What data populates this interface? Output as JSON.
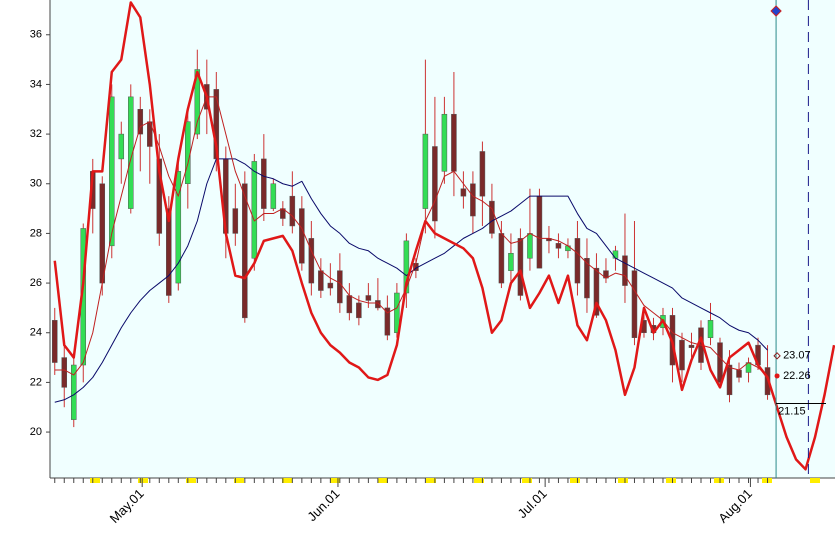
{
  "chart_data": {
    "type": "candlestick",
    "x": [
      0,
      1,
      2,
      3,
      4,
      5,
      6,
      7,
      8,
      9,
      10,
      11,
      12,
      13,
      14,
      15,
      16,
      17,
      18,
      19,
      20,
      21,
      22,
      23,
      24,
      25,
      26,
      27,
      28,
      29,
      30,
      31,
      32,
      33,
      34,
      35,
      36,
      37,
      38,
      39,
      40,
      41,
      42,
      43,
      44,
      45,
      46,
      47,
      48,
      49,
      50,
      51,
      52,
      53,
      54,
      55,
      56,
      57,
      58,
      59,
      60,
      61,
      62,
      63,
      64,
      65,
      66,
      67,
      68,
      69,
      70,
      71,
      72,
      73,
      74,
      75
    ],
    "open": [
      24.5,
      23,
      20.5,
      22.7,
      30.5,
      30,
      27.5,
      31,
      29,
      33,
      32.5,
      31,
      29,
      26,
      30,
      32,
      34,
      33.8,
      31,
      29,
      30,
      27,
      31,
      29,
      29,
      29.5,
      29,
      27.8,
      26.5,
      26,
      26.5,
      25.5,
      25.2,
      25.5,
      25.3,
      25,
      24,
      25.6,
      26.8,
      29,
      31.5,
      30.5,
      32.8,
      29.8,
      30,
      31.3,
      29.3,
      28,
      26.5,
      27.8,
      27,
      29.5,
      27.8,
      27.6,
      27.3,
      27.8,
      27,
      26.6,
      26.5,
      27,
      27.1,
      26.5,
      24.5,
      24.3,
      24.2,
      24.7,
      23.7,
      23.5,
      24.2,
      23.8,
      23.6,
      22.7,
      22.5,
      22.4,
      23.5,
      22.6
    ],
    "high": [
      25,
      23.5,
      23,
      28.4,
      31,
      30.3,
      34,
      32.5,
      34,
      33.5,
      33,
      32,
      29.5,
      31,
      33,
      35.4,
      35,
      34.5,
      31.5,
      30,
      30.5,
      31.2,
      32,
      30.2,
      29.3,
      30.5,
      29.5,
      28.5,
      27,
      26.8,
      27.2,
      26,
      25.5,
      26,
      26.2,
      25.5,
      26,
      28,
      27,
      35,
      33.5,
      33.5,
      34.5,
      30.5,
      30.5,
      31.7,
      30,
      28.5,
      28,
      28.2,
      29.8,
      29.8,
      28.3,
      28,
      27.8,
      28.5,
      27.8,
      27.2,
      27,
      27.5,
      28.8,
      28.5,
      25,
      24.6,
      25,
      25,
      24,
      24,
      24.5,
      25.2,
      23.8,
      23.3,
      22.8,
      23,
      23.8,
      23.5
    ],
    "low": [
      22.3,
      21,
      20.2,
      22,
      28,
      25.5,
      27,
      30,
      28.8,
      30.5,
      30,
      27.5,
      25.2,
      25.7,
      29,
      31.8,
      32,
      30.5,
      27,
      27.5,
      24.4,
      26.5,
      28.5,
      28.9,
      28.3,
      28,
      26.5,
      25.5,
      25.4,
      25.5,
      24.8,
      24.5,
      24.3,
      25,
      24.9,
      23.7,
      23.8,
      25,
      26.2,
      28,
      27.8,
      30,
      29.5,
      29,
      28,
      28.3,
      27.8,
      25.8,
      26,
      25.3,
      26.5,
      26.6,
      27.2,
      27,
      27,
      25.5,
      24.8,
      24.6,
      26,
      26.5,
      25.2,
      23.5,
      23.8,
      23.7,
      23.9,
      22,
      22,
      23,
      22.5,
      23.5,
      21.8,
      21.2,
      22,
      22,
      22.5,
      21.3
    ],
    "close": [
      22.8,
      21.8,
      22.7,
      28.2,
      29,
      26,
      33.5,
      32,
      33.5,
      32,
      31.5,
      28,
      25.5,
      30.5,
      32.5,
      34.6,
      33,
      31,
      28,
      28,
      24.6,
      30.9,
      29,
      30,
      28.6,
      28.3,
      26.8,
      26,
      25.7,
      25.8,
      25.2,
      24.8,
      24.6,
      25.3,
      25,
      23.9,
      25.6,
      27.7,
      26.5,
      32,
      28.5,
      32.8,
      30.5,
      29.5,
      28.7,
      29.5,
      28,
      26,
      27.2,
      25.5,
      28,
      26.6,
      27.7,
      27.4,
      27.5,
      26,
      25.4,
      24.7,
      26.2,
      27.3,
      25.9,
      23.8,
      24,
      24,
      24.7,
      22.7,
      22.5,
      23.4,
      22.8,
      24.5,
      22,
      21.5,
      22.2,
      22.8,
      22.7,
      21.5
    ],
    "up_color": "#33dd55",
    "down_color": "#7a2a2a",
    "wick_color": "#cc3333",
    "lines": [
      {
        "color": "#0a0a6a",
        "width": 1,
        "values": [
          21.2,
          21.3,
          21.5,
          21.8,
          22.2,
          22.8,
          23.5,
          24.2,
          24.8,
          25.3,
          25.7,
          26,
          26.3,
          26.8,
          27.5,
          28.5,
          30,
          31,
          31,
          31,
          30.8,
          30.5,
          30.3,
          30.2,
          30,
          29.9,
          30.1,
          29.4,
          28.8,
          28.3,
          28,
          27.6,
          27.4,
          27.3,
          27,
          26.8,
          26.6,
          26.3,
          26.6,
          26.8,
          27,
          27.2,
          27.5,
          27.8,
          28,
          28.2,
          28.5,
          28.7,
          28.9,
          29.2,
          29.5,
          29.5,
          29.5,
          29.5,
          29.5,
          28.8,
          28.2,
          28,
          27.5,
          27,
          26.8,
          26.6,
          26.4,
          26.2,
          26,
          25.8,
          25.4,
          25.2,
          25,
          24.8,
          24.6,
          24.3,
          24.1,
          24,
          23.7,
          23.3
        ]
      },
      {
        "color": "#c02020",
        "width": 1,
        "values": [
          22.5,
          22.5,
          22.3,
          22.8,
          24,
          26,
          28,
          29.5,
          31,
          32.3,
          32.5,
          31.5,
          30.3,
          29.5,
          30.8,
          32.5,
          33.5,
          33.5,
          32,
          30.5,
          29.5,
          28.5,
          28.8,
          28.8,
          29,
          28.7,
          28.2,
          27.3,
          26.5,
          26.2,
          26,
          25.5,
          25.3,
          25.2,
          25.2,
          24.8,
          25,
          25.8,
          26.8,
          28.5,
          29.3,
          30.3,
          30.5,
          30,
          29.5,
          29.3,
          29,
          28,
          27.6,
          27.7,
          28,
          27.8,
          27.8,
          27.7,
          27.5,
          27.2,
          26.8,
          26.5,
          26.2,
          26.4,
          26.3,
          25.7,
          25.1,
          24.8,
          24.5,
          24,
          23.8,
          23.6,
          23.5,
          23.4,
          23,
          22.6,
          22.5,
          22.8,
          22.6,
          22.26
        ]
      },
      {
        "color": "#e01818",
        "width": 2.5,
        "x": [
          0,
          1,
          2,
          3,
          4,
          5,
          6,
          7,
          8,
          9,
          10,
          11,
          12,
          13,
          14,
          15,
          16,
          17,
          18,
          19,
          20,
          21,
          22,
          23,
          24,
          25,
          26,
          27,
          28,
          29,
          30,
          31,
          32,
          33,
          34,
          35,
          36,
          37,
          38,
          39,
          40,
          41,
          42,
          43,
          44,
          45,
          46,
          47,
          48,
          49,
          50,
          51,
          52,
          53,
          54,
          55,
          56,
          57,
          58,
          59,
          60,
          61,
          62,
          63,
          64,
          65,
          66,
          67,
          68,
          69,
          70,
          71,
          72,
          73,
          74,
          75,
          76,
          77,
          78,
          79,
          80,
          81,
          82
        ],
        "values": [
          26.9,
          23.5,
          23,
          26,
          30.5,
          30.5,
          34.5,
          35,
          37.3,
          36.7,
          34,
          30.5,
          28.5,
          31,
          33,
          34.5,
          33.5,
          31.5,
          28,
          26.3,
          26.2,
          26.8,
          27.7,
          27.8,
          27.9,
          27.3,
          26,
          24.8,
          24,
          23.5,
          23.2,
          22.8,
          22.6,
          22.2,
          22.1,
          22.3,
          23.5,
          26,
          27.3,
          28.5,
          28,
          27.8,
          27.6,
          27.4,
          27,
          25.8,
          24,
          24.5,
          26,
          26.5,
          25,
          25.6,
          26.3,
          25.2,
          26.3,
          24.3,
          23.7,
          25.2,
          24.5,
          23.3,
          21.5,
          22.6,
          25,
          24,
          24.5,
          23.6,
          21.7,
          22.9,
          23.8,
          22.5,
          21.8,
          23,
          23.3,
          23.6,
          22.7,
          22.2,
          21,
          19.8,
          18.9,
          18.5,
          19.8,
          21.5,
          23.5
        ]
      }
    ],
    "markers": [
      {
        "value": 23.07,
        "color": "#8b1a1a"
      },
      {
        "value": 22.26,
        "color": "#e01818"
      },
      {
        "value": 21.15,
        "color": "#000000"
      }
    ],
    "vlines": [
      {
        "x": 75.9,
        "color": "#2a8a8a",
        "dash": false
      },
      {
        "x": 79.3,
        "color": "#1a1a8a",
        "dash": true
      }
    ],
    "xlim": [
      -0.5,
      82.1
    ],
    "ylim": [
      18.15,
      37.4
    ],
    "yticks": [
      20,
      22,
      24,
      26,
      28,
      30,
      32,
      34,
      36
    ],
    "xticks": [
      {
        "value": 9.2,
        "label": "May.01"
      },
      {
        "value": 29.8,
        "label": "Jun.01"
      },
      {
        "value": 51.6,
        "label": "Jul.01"
      },
      {
        "value": 73.2,
        "label": "Aug.01"
      }
    ],
    "background": "#f0ffff"
  }
}
